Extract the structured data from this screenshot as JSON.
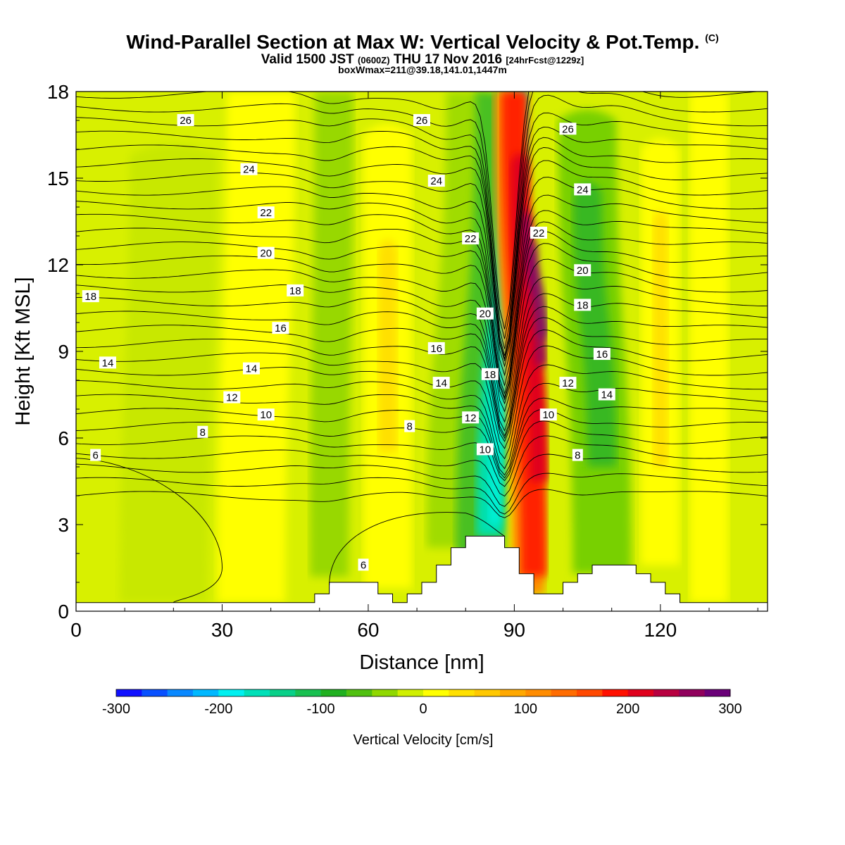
{
  "header": {
    "title": "Wind-Parallel Section at Max W: Vertical Velocity & Pot.Temp.",
    "title_mark": "(C)",
    "subtitle_main": "Valid 1500 JST",
    "subtitle_utc": "(0600Z)",
    "subtitle_date": "THU 17 Nov 2016",
    "subtitle_fcst": "[24hrFcst@1229z]",
    "subtitle2": "boxWmax=211@39.18,141.01,1447m"
  },
  "chart_data": {
    "type": "heatmap",
    "title": "Wind-Parallel Section at Max W: Vertical Velocity & Pot.Temp.",
    "xlabel": "Distance [nm]",
    "ylabel": "Height [Kft MSL]",
    "xlim": [
      0,
      142
    ],
    "ylim": [
      0,
      18
    ],
    "x_ticks": [
      "0",
      "30",
      "60",
      "90",
      "120"
    ],
    "y_ticks": [
      "0",
      "3",
      "6",
      "9",
      "12",
      "15",
      "18"
    ],
    "colorbar": {
      "label": "Vertical Velocity [cm/s]",
      "range": [
        -300,
        300
      ],
      "tick_labels": [
        "-300",
        "-200",
        "-100",
        "0",
        "100",
        "200",
        "300"
      ],
      "colors": [
        "#1010ff",
        "#0850ff",
        "#0888ff",
        "#00b8ff",
        "#00f0f0",
        "#00e0b8",
        "#08d088",
        "#18c050",
        "#20b020",
        "#50c010",
        "#90d800",
        "#d0ef00",
        "#ffff00",
        "#ffe000",
        "#ffc800",
        "#ffa800",
        "#ff8c00",
        "#ff6c00",
        "#ff4800",
        "#ff1000",
        "#e0001c",
        "#b80040",
        "#90005c",
        "#6a0078"
      ]
    },
    "vertical_velocity_features": [
      {
        "type": "downdraft",
        "x": 85,
        "min_cm_s": -200
      },
      {
        "type": "updraft",
        "x": 93,
        "max_cm_s": 300
      },
      {
        "type": "downdraft",
        "x": 108,
        "min_cm_s": -120
      },
      {
        "type": "downdraft",
        "x": 52,
        "min_cm_s": -100
      },
      {
        "type": "updraft",
        "x": 64,
        "max_cm_s": 40
      },
      {
        "type": "updraft",
        "x": 120,
        "max_cm_s": 40
      }
    ],
    "terrain_kft": {
      "x": [
        0,
        49,
        49,
        52,
        52,
        62,
        62,
        65,
        65,
        68,
        68,
        71,
        71,
        74,
        74,
        77,
        77,
        80,
        80,
        83,
        83,
        88,
        88,
        91,
        91,
        94,
        94,
        100,
        100,
        103,
        103,
        106,
        106,
        115,
        115,
        118,
        118,
        121,
        121,
        124,
        124,
        130,
        130,
        142
      ],
      "height": [
        0.3,
        0.3,
        0.6,
        0.6,
        1.0,
        1.0,
        0.6,
        0.6,
        0.3,
        0.3,
        0.6,
        0.6,
        1.0,
        1.0,
        1.6,
        1.6,
        2.2,
        2.2,
        2.6,
        2.6,
        2.6,
        2.6,
        2.2,
        2.2,
        1.3,
        1.3,
        0.6,
        0.6,
        1.0,
        1.0,
        1.3,
        1.3,
        1.6,
        1.6,
        1.3,
        1.3,
        1.0,
        1.0,
        0.6,
        0.6,
        0.3,
        0.3,
        0.3,
        0.3
      ]
    },
    "potential_temperature_contours_C": [
      6,
      8,
      10,
      12,
      14,
      16,
      18,
      20,
      22,
      24,
      26
    ],
    "contour_labels": [
      {
        "text": "26",
        "x": 22.5,
        "y": 17.0
      },
      {
        "text": "26",
        "x": 71.0,
        "y": 17.0
      },
      {
        "text": "26",
        "x": 101.0,
        "y": 16.7
      },
      {
        "text": "24",
        "x": 35.5,
        "y": 15.3
      },
      {
        "text": "24",
        "x": 74.0,
        "y": 14.9
      },
      {
        "text": "24",
        "x": 104.0,
        "y": 14.6
      },
      {
        "text": "22",
        "x": 39.0,
        "y": 13.8
      },
      {
        "text": "22",
        "x": 81.0,
        "y": 12.9
      },
      {
        "text": "22",
        "x": 95.0,
        "y": 13.1
      },
      {
        "text": "20",
        "x": 39.0,
        "y": 12.4
      },
      {
        "text": "20",
        "x": 84.0,
        "y": 10.3
      },
      {
        "text": "20",
        "x": 104.0,
        "y": 11.8
      },
      {
        "text": "18",
        "x": 3.0,
        "y": 10.9
      },
      {
        "text": "18",
        "x": 45.0,
        "y": 11.1
      },
      {
        "text": "18",
        "x": 85.0,
        "y": 8.2
      },
      {
        "text": "18",
        "x": 104.0,
        "y": 10.6
      },
      {
        "text": "16",
        "x": 42.0,
        "y": 9.8
      },
      {
        "text": "16",
        "x": 74.0,
        "y": 9.1
      },
      {
        "text": "16",
        "x": 108.0,
        "y": 8.9
      },
      {
        "text": "14",
        "x": 6.5,
        "y": 8.6
      },
      {
        "text": "14",
        "x": 36.0,
        "y": 8.4
      },
      {
        "text": "14",
        "x": 75.0,
        "y": 7.9
      },
      {
        "text": "14",
        "x": 109.0,
        "y": 7.5
      },
      {
        "text": "12",
        "x": 32.0,
        "y": 7.4
      },
      {
        "text": "12",
        "x": 81.0,
        "y": 6.7
      },
      {
        "text": "12",
        "x": 101.0,
        "y": 7.9
      },
      {
        "text": "10",
        "x": 39.0,
        "y": 6.8
      },
      {
        "text": "10",
        "x": 84.0,
        "y": 5.6
      },
      {
        "text": "10",
        "x": 97.0,
        "y": 6.8
      },
      {
        "text": "8",
        "x": 26.0,
        "y": 6.2
      },
      {
        "text": "8",
        "x": 68.5,
        "y": 6.4
      },
      {
        "text": "8",
        "x": 103.0,
        "y": 5.4
      },
      {
        "text": "6",
        "x": 4.0,
        "y": 5.4
      },
      {
        "text": "6",
        "x": 59.0,
        "y": 1.6
      }
    ],
    "grid": false,
    "legend": "bottom colorbar"
  }
}
